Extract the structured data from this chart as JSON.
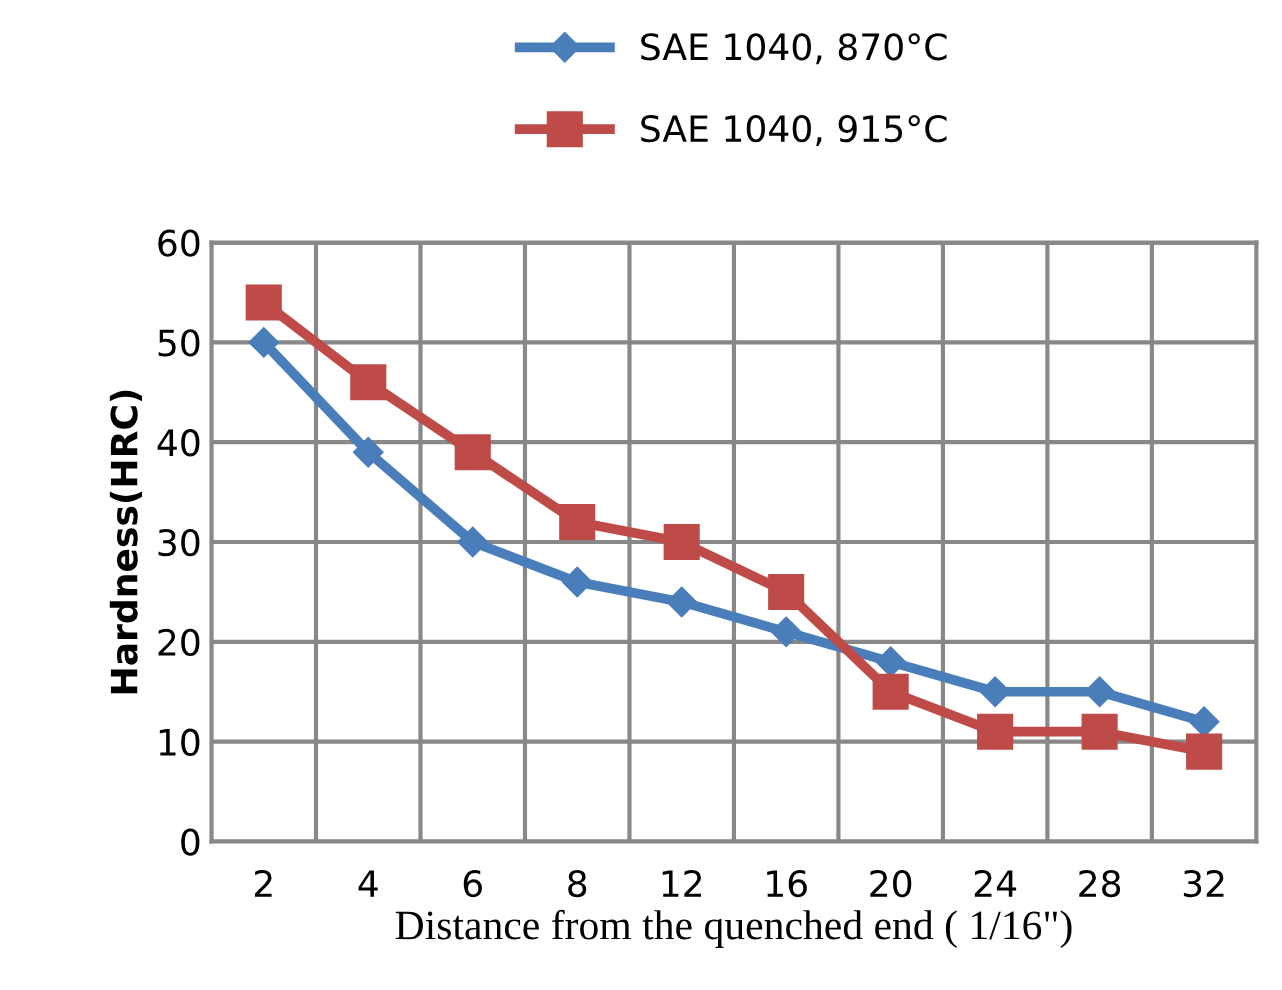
{
  "chart_data": {
    "type": "line",
    "xlabel": "Distance from the quenched end ( 1/16\")",
    "ylabel": "Hardness(HRC)",
    "categories": [
      "2",
      "4",
      "6",
      "8",
      "12",
      "16",
      "20",
      "24",
      "28",
      "32"
    ],
    "series": [
      {
        "name": "SAE 1040, 870°C",
        "color": "#4a7ebb",
        "marker": "diamond",
        "values": [
          50,
          39,
          30,
          26,
          24,
          21,
          18,
          15,
          15,
          12
        ]
      },
      {
        "name": "SAE 1040, 915°C",
        "color": "#be4b48",
        "marker": "square",
        "values": [
          54,
          46,
          39,
          32,
          30,
          25,
          15,
          11,
          11,
          9
        ]
      }
    ],
    "ylim": [
      0,
      60
    ],
    "yticks": [
      0,
      10,
      20,
      30,
      40,
      50,
      60
    ],
    "grid": true,
    "legend": "top",
    "line_style": "solid"
  }
}
